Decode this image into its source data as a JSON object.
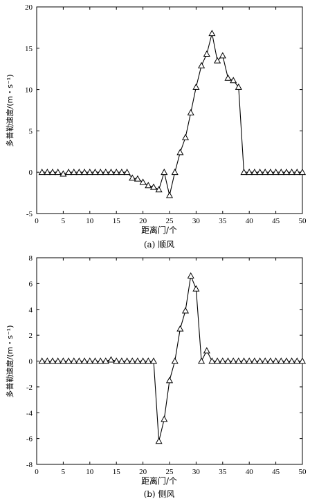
{
  "chart_data": [
    {
      "type": "line",
      "caption": "(a) 顺风",
      "xlabel": "距离门/个",
      "ylabel": "多普勒速度/(m・s⁻¹)",
      "xlim": [
        0,
        50
      ],
      "ylim": [
        -5,
        20
      ],
      "xticks": [
        0,
        5,
        10,
        15,
        20,
        25,
        30,
        35,
        40,
        45,
        50
      ],
      "yticks": [
        -5,
        0,
        5,
        10,
        15,
        20
      ],
      "marker": "triangle",
      "grid": false,
      "x": [
        1,
        2,
        3,
        4,
        5,
        6,
        7,
        8,
        9,
        10,
        11,
        12,
        13,
        14,
        15,
        16,
        17,
        18,
        19,
        20,
        21,
        22,
        23,
        24,
        25,
        26,
        27,
        28,
        29,
        30,
        31,
        32,
        33,
        34,
        35,
        36,
        37,
        38,
        39,
        40,
        41,
        42,
        43,
        44,
        45,
        46,
        47,
        48,
        49,
        50
      ],
      "y": [
        0,
        0,
        0,
        0,
        -0.2,
        0,
        0,
        0,
        0,
        0,
        0,
        0,
        0,
        0,
        0,
        0,
        0,
        -0.7,
        -0.8,
        -1.2,
        -1.6,
        -1.8,
        -2.1,
        0,
        -2.8,
        0,
        2.4,
        4.2,
        7.2,
        10.3,
        12.9,
        14.3,
        16.8,
        13.5,
        14.1,
        11.4,
        11.1,
        10.3,
        0,
        0,
        0,
        0,
        0,
        0,
        0,
        0,
        0,
        0,
        0,
        0
      ]
    },
    {
      "type": "line",
      "caption": "(b) 侧风",
      "xlabel": "距离门/个",
      "ylabel": "多普勒速度/(m・s⁻¹)",
      "xlim": [
        0,
        50
      ],
      "ylim": [
        -8,
        8
      ],
      "xticks": [
        0,
        5,
        10,
        15,
        20,
        25,
        30,
        35,
        40,
        45,
        50
      ],
      "yticks": [
        -8,
        -6,
        -4,
        -2,
        0,
        2,
        4,
        6,
        8
      ],
      "marker": "triangle",
      "grid": false,
      "x": [
        1,
        2,
        3,
        4,
        5,
        6,
        7,
        8,
        9,
        10,
        11,
        12,
        13,
        14,
        15,
        16,
        17,
        18,
        19,
        20,
        21,
        22,
        23,
        24,
        25,
        26,
        27,
        28,
        29,
        30,
        31,
        32,
        33,
        34,
        35,
        36,
        37,
        38,
        39,
        40,
        41,
        42,
        43,
        44,
        45,
        46,
        47,
        48,
        49,
        50
      ],
      "y": [
        0,
        0,
        0,
        0,
        0,
        0,
        0,
        0,
        0,
        0,
        0,
        0,
        0,
        0.1,
        0,
        0,
        0,
        0,
        0,
        0,
        0,
        0,
        -6.2,
        -4.5,
        -1.5,
        0,
        2.5,
        3.9,
        6.6,
        5.6,
        0,
        0.8,
        0,
        0,
        0,
        0,
        0,
        0,
        0,
        0,
        0,
        0,
        0,
        0,
        0,
        0,
        0,
        0,
        0,
        0
      ]
    }
  ]
}
